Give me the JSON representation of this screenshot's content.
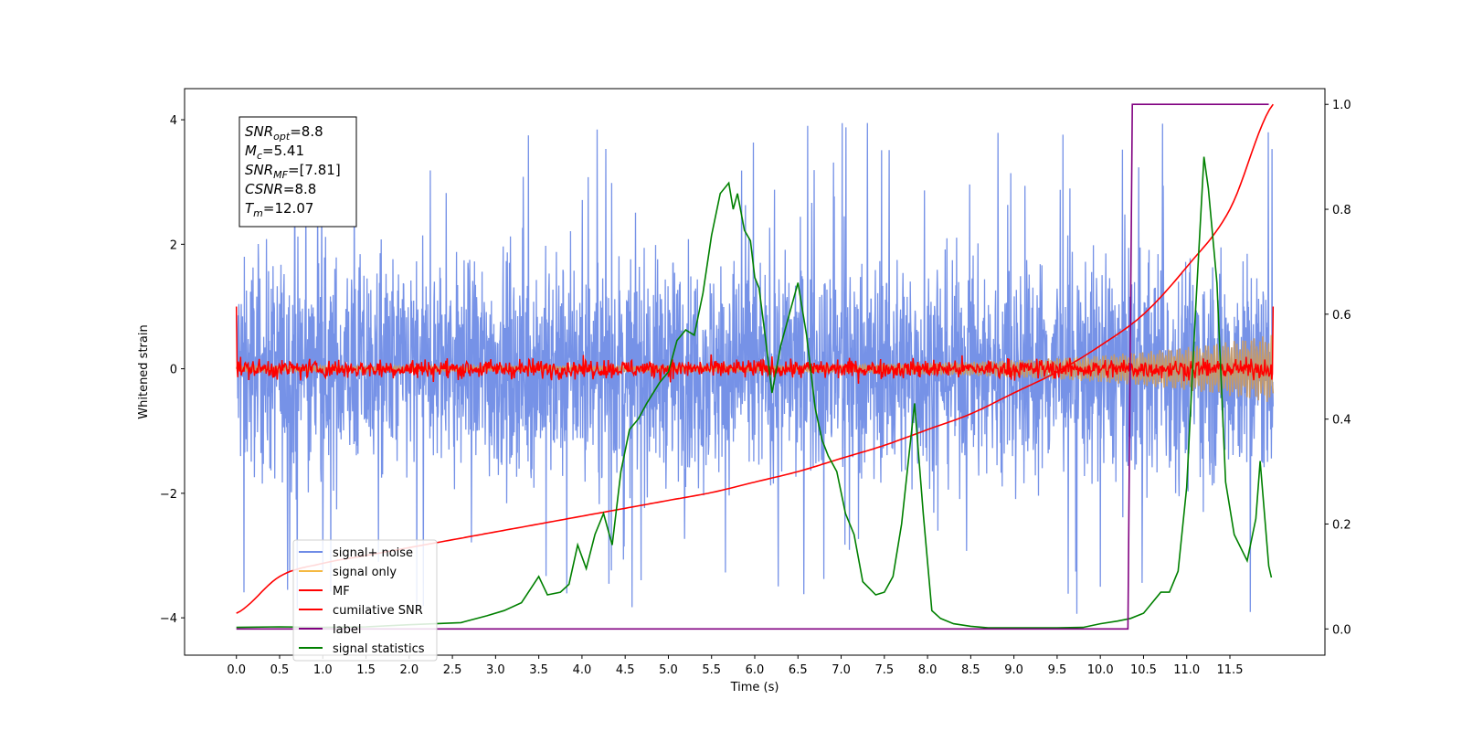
{
  "chart_data": {
    "type": "line",
    "xlabel": "Time (s)",
    "ylabel": "Whitened strain",
    "ylim": [
      -4.6,
      4.5
    ],
    "ylim_right": [
      -0.05,
      1.03
    ],
    "xlim": [
      -0.6,
      12.6
    ],
    "x_ticks": [
      0.0,
      0.5,
      1.0,
      1.5,
      2.0,
      2.5,
      3.0,
      3.5,
      4.0,
      4.5,
      5.0,
      5.5,
      6.0,
      6.5,
      7.0,
      7.5,
      8.0,
      8.5,
      9.0,
      9.5,
      10.0,
      10.5,
      11.0,
      11.5
    ],
    "x_tick_labels": [
      "0.0",
      "0.5",
      "1.0",
      "1.5",
      "2.0",
      "2.5",
      "3.0",
      "3.5",
      "4.0",
      "4.5",
      "5.0",
      "5.5",
      "6.0",
      "6.5",
      "7.0",
      "7.5",
      "8.0",
      "8.5",
      "9.0",
      "9.5",
      "10.0",
      "10.5",
      "11.0",
      "11.5"
    ],
    "y_ticks_left": [
      -4,
      -2,
      0,
      2,
      4
    ],
    "y_tick_labels_left": [
      "−4",
      "−2",
      "0",
      "2",
      "4"
    ],
    "y_ticks_right": [
      0.0,
      0.2,
      0.4,
      0.6,
      0.8,
      1.0
    ],
    "y_tick_labels_right": [
      "0.0",
      "0.2",
      "0.4",
      "0.6",
      "0.8",
      "1.0"
    ],
    "grid": false,
    "legend": {
      "placement": "lower-left"
    },
    "annotation": {
      "lines": [
        {
          "main": "SNR",
          "sub": "opt",
          "rest": "=8.8"
        },
        {
          "main": "M",
          "sub": "c",
          "rest": "=5.41"
        },
        {
          "main": "SNR",
          "sub": "MF",
          "rest": "=[7.81]"
        },
        {
          "main": "CSNR",
          "sub": "",
          "rest": "=8.8"
        },
        {
          "main": "T",
          "sub": "m",
          "rest": "=12.07"
        }
      ]
    },
    "series": [
      {
        "name": "signal+ noise",
        "color": "#6f8ce6",
        "axis": "left",
        "x_range": [
          0.0,
          12.0
        ],
        "center": 0.0,
        "typical_amplitude": 2.1,
        "peak_amplitude": 4.0,
        "min_value": -4.15
      },
      {
        "name": "signal only",
        "color": "#f5b942",
        "axis": "left",
        "x_range": [
          0.0,
          12.0
        ],
        "amplitude_start": 0.05,
        "amplitude_end": 0.55
      },
      {
        "name": "MF",
        "color": "#ff0000",
        "axis": "left",
        "x_range": [
          0.0,
          12.0
        ],
        "typical_amplitude": 0.2,
        "peak_amplitude": 0.35,
        "edge_value": 1.0
      },
      {
        "name": "cumilative SNR",
        "color": "#ff0000",
        "axis": "right",
        "x": [
          0.0,
          0.5,
          1.0,
          1.5,
          2.0,
          2.5,
          3.0,
          3.5,
          4.0,
          4.5,
          5.0,
          5.5,
          6.0,
          6.5,
          7.0,
          7.5,
          8.0,
          8.5,
          9.0,
          9.5,
          10.0,
          10.5,
          11.0,
          11.5,
          12.0
        ],
        "values": [
          0.03,
          0.1,
          0.125,
          0.14,
          0.155,
          0.17,
          0.185,
          0.2,
          0.215,
          0.23,
          0.245,
          0.26,
          0.28,
          0.3,
          0.325,
          0.35,
          0.38,
          0.41,
          0.45,
          0.49,
          0.54,
          0.6,
          0.69,
          0.8,
          1.0
        ]
      },
      {
        "name": "label",
        "color": "#800080",
        "axis": "right",
        "x": [
          0.0,
          10.32,
          10.32,
          10.37,
          10.37,
          11.95
        ],
        "values": [
          0.0,
          0.0,
          0.0,
          1.0,
          1.0,
          1.0
        ]
      },
      {
        "name": "signal statistics",
        "color": "#008000",
        "axis": "right",
        "x": [
          0.0,
          0.5,
          1.0,
          1.5,
          2.0,
          2.3,
          2.6,
          2.9,
          3.1,
          3.3,
          3.4,
          3.5,
          3.6,
          3.75,
          3.85,
          3.95,
          4.05,
          4.15,
          4.25,
          4.35,
          4.45,
          4.55,
          4.65,
          4.75,
          4.9,
          5.0,
          5.1,
          5.2,
          5.3,
          5.4,
          5.5,
          5.6,
          5.7,
          5.75,
          5.8,
          5.88,
          5.95,
          6.0,
          6.05,
          6.12,
          6.2,
          6.3,
          6.4,
          6.5,
          6.6,
          6.7,
          6.78,
          6.85,
          6.95,
          7.05,
          7.15,
          7.25,
          7.4,
          7.5,
          7.6,
          7.7,
          7.85,
          7.95,
          8.05,
          8.15,
          8.3,
          8.5,
          8.7,
          9.0,
          9.5,
          9.8,
          10.0,
          10.2,
          10.35,
          10.5,
          10.7,
          10.8,
          10.9,
          11.0,
          11.1,
          11.2,
          11.25,
          11.35,
          11.45,
          11.55,
          11.7,
          11.8,
          11.85,
          11.95,
          11.98
        ],
        "values": [
          0.003,
          0.004,
          0.003,
          0.004,
          0.008,
          0.01,
          0.012,
          0.025,
          0.035,
          0.05,
          0.075,
          0.1,
          0.065,
          0.07,
          0.085,
          0.16,
          0.115,
          0.18,
          0.22,
          0.16,
          0.3,
          0.38,
          0.4,
          0.43,
          0.47,
          0.49,
          0.55,
          0.57,
          0.56,
          0.64,
          0.75,
          0.83,
          0.85,
          0.8,
          0.83,
          0.76,
          0.74,
          0.67,
          0.65,
          0.56,
          0.45,
          0.54,
          0.6,
          0.66,
          0.56,
          0.42,
          0.36,
          0.33,
          0.3,
          0.22,
          0.18,
          0.09,
          0.065,
          0.07,
          0.1,
          0.2,
          0.43,
          0.22,
          0.035,
          0.02,
          0.01,
          0.005,
          0.002,
          0.002,
          0.002,
          0.003,
          0.01,
          0.015,
          0.02,
          0.03,
          0.07,
          0.07,
          0.11,
          0.27,
          0.6,
          0.9,
          0.84,
          0.66,
          0.28,
          0.18,
          0.13,
          0.21,
          0.32,
          0.12,
          0.098
        ]
      }
    ]
  }
}
